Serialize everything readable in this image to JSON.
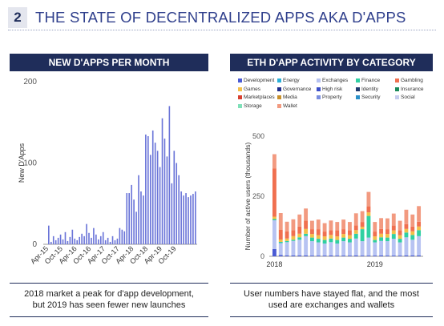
{
  "header": {
    "number": "2",
    "title": "THE STATE OF DECENTRALIZED APPS AKA D'APPS"
  },
  "left": {
    "panel_title": "NEW D'APPS PER MONTH",
    "caption_line1": "2018 market a peak for d'app development,",
    "caption_line2": "but 2019 has seen fewer new launches"
  },
  "right": {
    "panel_title": "ETH D'APP ACTIVITY BY CATEGORY",
    "caption_line1": "User numbers have stayed flat, and the most",
    "caption_line2": "used are exchanges and wallets"
  },
  "chart_data": [
    {
      "type": "bar",
      "title": "NEW D'APPS PER MONTH",
      "ylabel": "New D'Apps",
      "ylim": [
        0,
        200
      ],
      "yticks": [
        0,
        100,
        200
      ],
      "tick_labels": [
        "Apr-15",
        "Oct-15",
        "Apr-16",
        "Oct-16",
        "Apr-17",
        "Oct-17",
        "Apr-18",
        "Oct-18",
        "Apr-19",
        "Oct-19"
      ],
      "x_start": "Apr-15",
      "values": [
        23,
        3,
        10,
        5,
        8,
        12,
        6,
        15,
        4,
        9,
        18,
        7,
        5,
        9,
        13,
        10,
        25,
        14,
        8,
        20,
        12,
        6,
        10,
        15,
        5,
        8,
        3,
        10,
        5,
        7,
        20,
        18,
        16,
        63,
        63,
        73,
        55,
        40,
        85,
        65,
        60,
        135,
        133,
        110,
        140,
        125,
        115,
        95,
        155,
        130,
        108,
        170,
        75,
        115,
        100,
        85,
        65,
        60,
        63,
        58,
        60,
        62,
        65
      ],
      "color": "#6a74d8"
    },
    {
      "type": "bar",
      "stacked": true,
      "title": "ETH D'APP ACTIVITY BY CATEGORY",
      "ylabel": "Number of active users (thousands)",
      "ylim": [
        0,
        500
      ],
      "yticks": [
        0,
        250,
        500
      ],
      "tick_labels": [
        "2018",
        "2019"
      ],
      "legend_position": "top",
      "legend": [
        {
          "name": "Development",
          "color": "#4a5bd4"
        },
        {
          "name": "Energy",
          "color": "#2ab0d8"
        },
        {
          "name": "Exchanges",
          "color": "#b7c3f2"
        },
        {
          "name": "Finance",
          "color": "#2fd0a2"
        },
        {
          "name": "Gambling",
          "color": "#f07050"
        },
        {
          "name": "Games",
          "color": "#f3c04a"
        },
        {
          "name": "Governance",
          "color": "#1f2d8c"
        },
        {
          "name": "High risk",
          "color": "#3c4fc8"
        },
        {
          "name": "Identity",
          "color": "#1f3a6e"
        },
        {
          "name": "Insurance",
          "color": "#1a8a5a"
        },
        {
          "name": "Marketplaces",
          "color": "#d84030"
        },
        {
          "name": "Media",
          "color": "#c8902a"
        },
        {
          "name": "Property",
          "color": "#7a8ee0"
        },
        {
          "name": "Security",
          "color": "#2a90c8"
        },
        {
          "name": "Social",
          "color": "#c6ccee"
        },
        {
          "name": "Storage",
          "color": "#7ee0b8"
        },
        {
          "name": "Wallet",
          "color": "#f29a80"
        }
      ],
      "series": [
        {
          "name": "Development",
          "values": [
            30,
            5,
            4,
            4,
            4,
            4,
            3,
            3,
            3,
            4,
            3,
            3,
            3,
            4,
            3,
            3,
            3,
            4,
            3,
            3,
            3,
            4,
            4,
            4
          ]
        },
        {
          "name": "Exchanges",
          "values": [
            120,
            50,
            55,
            60,
            65,
            80,
            60,
            55,
            50,
            55,
            50,
            60,
            55,
            70,
            60,
            75,
            55,
            60,
            60,
            70,
            55,
            75,
            65,
            80
          ]
        },
        {
          "name": "Finance",
          "values": [
            5,
            5,
            5,
            5,
            10,
            10,
            15,
            15,
            15,
            15,
            15,
            15,
            15,
            20,
            50,
            90,
            10,
            15,
            15,
            20,
            15,
            20,
            20,
            25
          ]
        },
        {
          "name": "Games",
          "values": [
            10,
            10,
            10,
            15,
            15,
            20,
            15,
            15,
            15,
            15,
            15,
            15,
            15,
            15,
            10,
            15,
            15,
            15,
            15,
            15,
            15,
            15,
            15,
            15
          ]
        },
        {
          "name": "Gambling",
          "values": [
            200,
            40,
            30,
            25,
            30,
            35,
            20,
            25,
            20,
            20,
            25,
            20,
            20,
            20,
            20,
            25,
            20,
            20,
            20,
            20,
            20,
            20,
            20,
            20
          ]
        },
        {
          "name": "Wallet",
          "values": [
            60,
            70,
            40,
            45,
            50,
            50,
            35,
            40,
            35,
            40,
            35,
            40,
            35,
            50,
            45,
            60,
            40,
            45,
            45,
            50,
            40,
            60,
            50,
            65
          ]
        }
      ]
    }
  ]
}
